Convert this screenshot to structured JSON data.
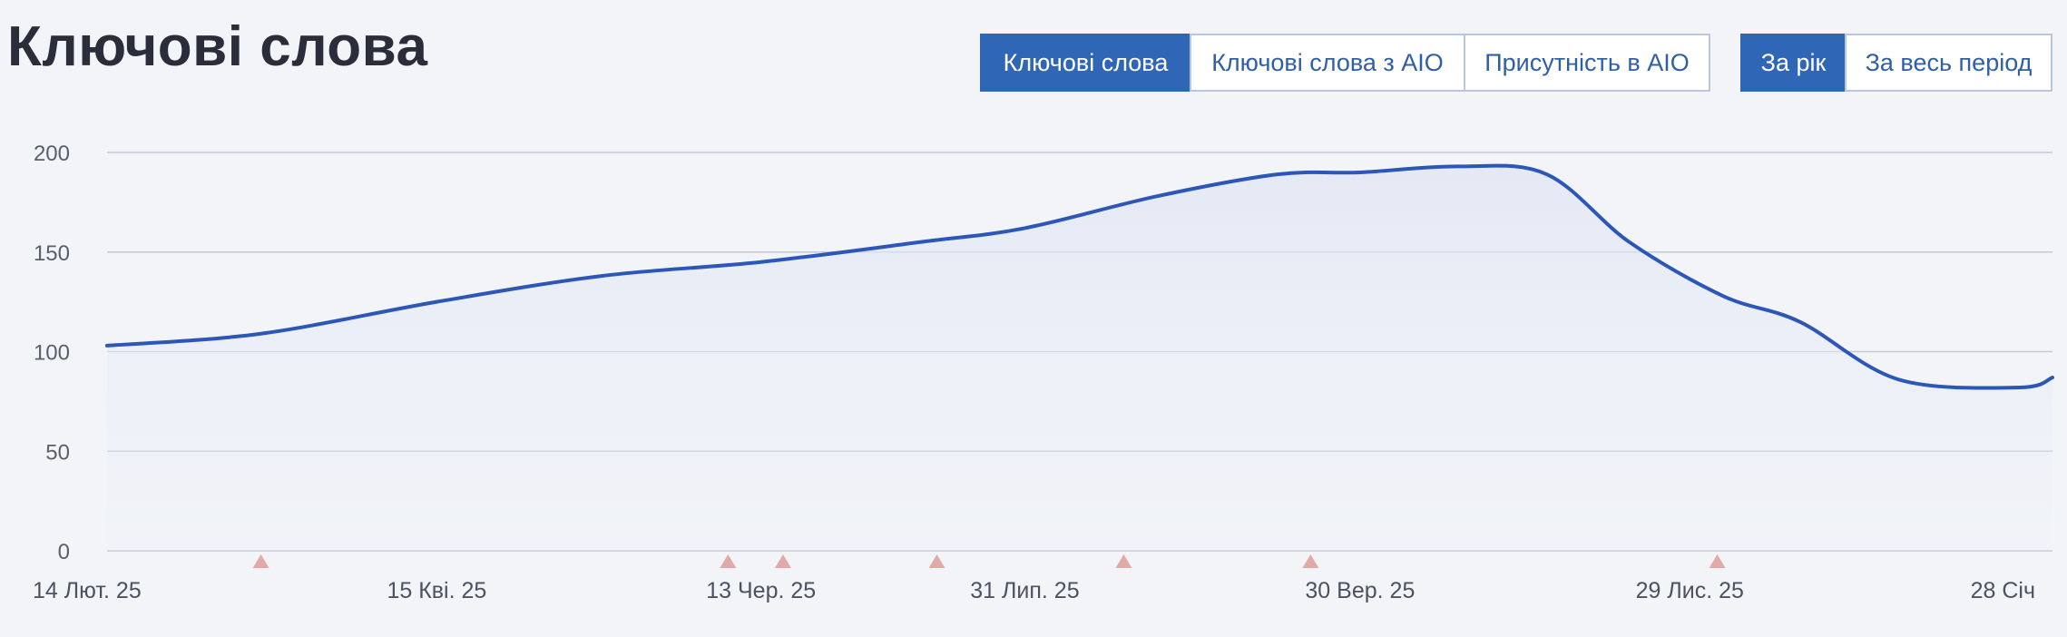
{
  "header": {
    "title": "Ключові слова"
  },
  "metric_tabs": [
    {
      "label": "Ключові слова",
      "active": true
    },
    {
      "label": "Ключові слова з AIO",
      "active": false
    },
    {
      "label": "Присутність в AIO",
      "active": false
    }
  ],
  "period_tabs": [
    {
      "label": "За рік",
      "active": true
    },
    {
      "label": "За весь період",
      "active": false
    }
  ],
  "colors": {
    "accent": "#2f67b6",
    "line": "#2c57b8",
    "marker": "#e0aaa8",
    "grid": "#c5c9d2"
  },
  "chart_data": {
    "type": "area",
    "title": "",
    "xlabel": "",
    "ylabel": "",
    "ylim": [
      0,
      200
    ],
    "yticks": [
      0,
      50,
      100,
      150,
      200
    ],
    "xlim": [
      "2025-02-14",
      "2026-02-03"
    ],
    "xticks": [
      {
        "date": "2025-02-14",
        "label": "14 Лют. 25"
      },
      {
        "date": "2025-04-15",
        "label": "15 Кві. 25"
      },
      {
        "date": "2025-06-13",
        "label": "13 Чер. 25"
      },
      {
        "date": "2025-07-31",
        "label": "31 Лип. 25"
      },
      {
        "date": "2025-09-30",
        "label": "30 Вер. 25"
      },
      {
        "date": "2025-11-29",
        "label": "29 Лис. 25"
      },
      {
        "date": "2026-01-28",
        "label": "28 Січ"
      }
    ],
    "grid": true,
    "legend": "none",
    "series": [
      {
        "points": [
          {
            "x": "2025-02-14",
            "y": 103
          },
          {
            "x": "2025-03-14",
            "y": 109
          },
          {
            "x": "2025-04-15",
            "y": 125
          },
          {
            "x": "2025-05-15",
            "y": 138
          },
          {
            "x": "2025-06-13",
            "y": 145
          },
          {
            "x": "2025-07-12",
            "y": 155
          },
          {
            "x": "2025-07-31",
            "y": 162
          },
          {
            "x": "2025-08-24",
            "y": 178
          },
          {
            "x": "2025-09-15",
            "y": 189
          },
          {
            "x": "2025-09-30",
            "y": 190
          },
          {
            "x": "2025-10-18",
            "y": 193
          },
          {
            "x": "2025-11-03",
            "y": 189
          },
          {
            "x": "2025-11-18",
            "y": 155
          },
          {
            "x": "2025-12-05",
            "y": 128
          },
          {
            "x": "2025-12-19",
            "y": 115
          },
          {
            "x": "2026-01-06",
            "y": 86
          },
          {
            "x": "2026-01-28",
            "y": 82
          },
          {
            "x": "2026-02-03",
            "y": 87
          }
        ]
      }
    ],
    "markers": [
      "2025-03-14",
      "2025-06-07",
      "2025-06-17",
      "2025-07-15",
      "2025-08-18",
      "2025-09-21",
      "2025-12-04"
    ]
  }
}
